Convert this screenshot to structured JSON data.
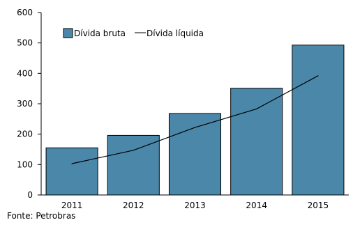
{
  "chart_data": {
    "type": "bar",
    "categories": [
      "2011",
      "2012",
      "2013",
      "2014",
      "2015"
    ],
    "series": [
      {
        "name": "Dívida bruta",
        "type": "bar",
        "color": "#4a87a9",
        "values": [
          155,
          196,
          268,
          351,
          493
        ]
      },
      {
        "name": "Dívida líquida",
        "type": "line",
        "color": "#000000",
        "values": [
          103,
          147,
          222,
          283,
          392
        ]
      }
    ],
    "ylim": [
      0,
      600
    ],
    "yticks": [
      0,
      100,
      200,
      300,
      400,
      500,
      600
    ],
    "grid": false,
    "legend_position": "top-left"
  },
  "source": "Fonte: Petrobras"
}
